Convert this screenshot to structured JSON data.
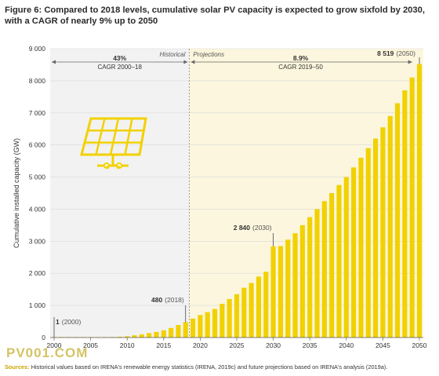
{
  "title_line1": "Figure 6: Compared to 2018 levels, cumulative solar PV capacity is expected to grow sixfold by 2030,",
  "title_line2": "with a CAGR of nearly 9% up to 2050",
  "source_label": "Sources:",
  "source_text": "Historical values based on IRENA's renewable energy statistics (IRENA, 2019c) and future projections based on IRENA's analysis (2019a).",
  "watermark": "PV001.COM",
  "colors": {
    "bar": "#f2d100",
    "bar_edge": "#e0bf00",
    "projection_bg": "#fbf6dd",
    "historical_bg": "#f2f2f2",
    "panel": "#f2d100"
  },
  "icons": [
    "solar-panel-icon"
  ],
  "chart_data": {
    "type": "bar",
    "ylabel": "Cumulative installed capacity (GW)",
    "ylim": [
      0,
      9000
    ],
    "y_ticks": [
      "0",
      "1 000",
      "2 000",
      "3 000",
      "4 000",
      "5 000",
      "6 000",
      "7 000",
      "8 000",
      "9 000"
    ],
    "y_tick_values": [
      0,
      1000,
      2000,
      3000,
      4000,
      5000,
      6000,
      7000,
      8000,
      9000
    ],
    "x_ticks": [
      "2000",
      "2005",
      "2010",
      "2015",
      "2020",
      "2025",
      "2030",
      "2035",
      "2040",
      "2045",
      "2050"
    ],
    "x_tick_values": [
      2000,
      2005,
      2010,
      2015,
      2020,
      2025,
      2030,
      2035,
      2040,
      2045,
      2050
    ],
    "xlim": [
      2000,
      2050
    ],
    "split_year": 2019,
    "historical_label": "Historical",
    "projections_label": "Projections",
    "cagr_hist": {
      "value": "43%",
      "label": "CAGR 2000–18"
    },
    "cagr_proj": {
      "value": "8.9%",
      "label": "CAGR 2019–50"
    },
    "annotations": [
      {
        "year": 2000,
        "value": 1,
        "bold": "1",
        "rest": "(2000)"
      },
      {
        "year": 2018,
        "value": 480,
        "bold": "480",
        "rest": "(2018)"
      },
      {
        "year": 2030,
        "value": 2840,
        "bold": "2 840",
        "rest": "(2030)"
      },
      {
        "year": 2050,
        "value": 8519,
        "bold": "8 519",
        "rest": "(2050)"
      }
    ],
    "x": [
      2000,
      2001,
      2002,
      2003,
      2004,
      2005,
      2006,
      2007,
      2008,
      2009,
      2010,
      2011,
      2012,
      2013,
      2014,
      2015,
      2016,
      2017,
      2018,
      2019,
      2020,
      2021,
      2022,
      2023,
      2024,
      2025,
      2026,
      2027,
      2028,
      2029,
      2030,
      2031,
      2032,
      2033,
      2034,
      2035,
      2036,
      2037,
      2038,
      2039,
      2040,
      2041,
      2042,
      2043,
      2044,
      2045,
      2046,
      2047,
      2048,
      2049,
      2050
    ],
    "values": [
      1,
      1,
      2,
      3,
      4,
      5,
      6,
      9,
      15,
      23,
      40,
      70,
      100,
      138,
      175,
      225,
      300,
      390,
      480,
      590,
      700,
      790,
      890,
      1050,
      1200,
      1350,
      1550,
      1700,
      1900,
      2050,
      2840,
      2850,
      3050,
      3250,
      3500,
      3750,
      4000,
      4250,
      4500,
      4750,
      5000,
      5300,
      5600,
      5900,
      6200,
      6550,
      6900,
      7300,
      7700,
      8100,
      8519
    ]
  }
}
